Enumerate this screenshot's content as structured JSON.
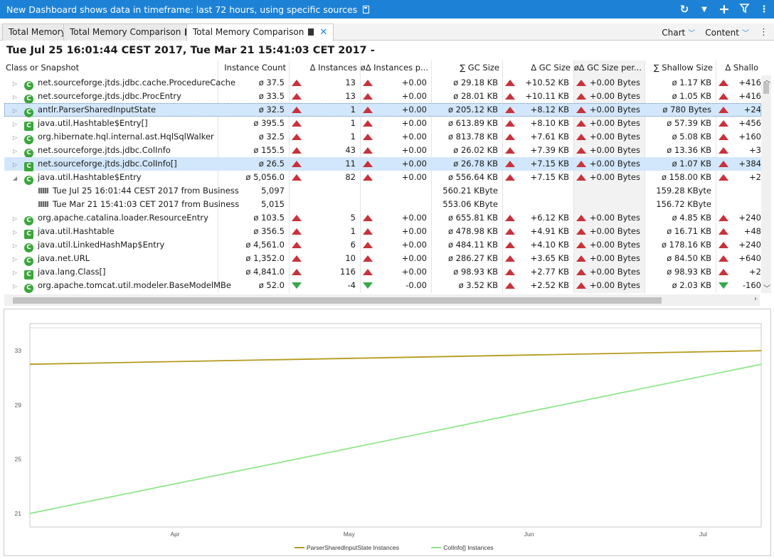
{
  "titlebar": {
    "title": "New Dashboard shows data in timeframe: last 72 hours, using specific sources",
    "icons": [
      "refresh-icon",
      "dropdown-icon",
      "plus-icon",
      "filter-icon",
      "more-icon"
    ]
  },
  "tabs": [
    {
      "label": "Total Memory"
    },
    {
      "label": "Total Memory Comparison"
    },
    {
      "label": "Total Memory Comparison"
    }
  ],
  "toolbar": {
    "chart_label": "Chart",
    "content_label": "Content"
  },
  "heading": "Tue Jul 25 16:01:44 CEST 2017, Tue Mar 21 15:41:03 CET 2017 -",
  "columns": [
    "Class or Snapshot",
    "Instance Count",
    "Δ Instances",
    "ø∆ Instances p...",
    "∑ GC Size",
    "Δ GC Size",
    "ø∆ GC Size per...",
    "∑ Shallow Size",
    "Δ Shallo"
  ],
  "rows": [
    {
      "name": "net.sourceforge.jtds.jdbc.cache.ProcedureCache",
      "type": "class",
      "count": "ø 37.5",
      "dinst": "13",
      "dinst_up": true,
      "avginst": "+0.00",
      "gc": "ø 29.18 KB",
      "dgc": "+10.52 KB",
      "avggc": "+0.00 Bytes",
      "shallow": "ø 1.17 KB",
      "dshallow": "+416"
    },
    {
      "name": "net.sourceforge.jtds.jdbc.ProcEntry",
      "type": "class",
      "count": "ø 33.5",
      "dinst": "13",
      "dinst_up": true,
      "avginst": "+0.00",
      "gc": "ø 28.01 KB",
      "dgc": "+10.11 KB",
      "avggc": "+0.00 Bytes",
      "shallow": "ø 1.05 KB",
      "dshallow": "+416"
    },
    {
      "name": "antlr.ParserSharedInputState",
      "type": "class",
      "count": "ø 32.5",
      "dinst": "1",
      "dinst_up": true,
      "avginst": "+0.00",
      "gc": "ø 205.12 KB",
      "dgc": "+8.12 KB",
      "avggc": "+0.00 Bytes",
      "shallow": "ø 780 Bytes",
      "dshallow": "+24",
      "selected": true,
      "focused": true
    },
    {
      "name": "java.util.Hashtable$Entry[]",
      "type": "array",
      "count": "ø 395.5",
      "dinst": "1",
      "dinst_up": true,
      "avginst": "+0.00",
      "gc": "ø 613.89 KB",
      "dgc": "+8.10 KB",
      "avggc": "+0.00 Bytes",
      "shallow": "ø 57.39 KB",
      "dshallow": "+456"
    },
    {
      "name": "org.hibernate.hql.internal.ast.HqlSqlWalker",
      "type": "class",
      "count": "ø 32.5",
      "dinst": "1",
      "dinst_up": true,
      "avginst": "+0.00",
      "gc": "ø 813.78 KB",
      "dgc": "+7.61 KB",
      "avggc": "+0.00 Bytes",
      "shallow": "ø 5.08 KB",
      "dshallow": "+160"
    },
    {
      "name": "net.sourceforge.jtds.jdbc.ColInfo",
      "type": "class",
      "count": "ø 155.5",
      "dinst": "43",
      "dinst_up": true,
      "avginst": "+0.00",
      "gc": "ø 26.02 KB",
      "dgc": "+7.39 KB",
      "avggc": "+0.00 Bytes",
      "shallow": "ø 13.36 KB",
      "dshallow": "+3"
    },
    {
      "name": "net.sourceforge.jtds.jdbc.ColInfo[]",
      "type": "array",
      "count": "ø 26.5",
      "dinst": "11",
      "dinst_up": true,
      "avginst": "+0.00",
      "gc": "ø 26.78 KB",
      "dgc": "+7.15 KB",
      "avggc": "+0.00 Bytes",
      "shallow": "ø 1.07 KB",
      "dshallow": "+384",
      "selected": true
    },
    {
      "name": "java.util.Hashtable$Entry",
      "type": "class",
      "count": "ø 5,056.0",
      "dinst": "82",
      "dinst_up": true,
      "avginst": "+0.00",
      "gc": "ø 556.64 KB",
      "dgc": "+7.15 KB",
      "avggc": "+0.00 Bytes",
      "shallow": "ø 158.00 KB",
      "dshallow": "+2",
      "expanded": true
    },
    {
      "name": "Tue Jul 25 16:01:44 CEST 2017 from Business",
      "type": "snapshot",
      "count": "5,097",
      "gc": "560.21 KByte",
      "shallow": "159.28 KByte"
    },
    {
      "name": "Tue Mar 21 15:41:03 CET 2017 from Business",
      "type": "snapshot",
      "count": "5,015",
      "gc": "553.06 KByte",
      "shallow": "156.72 KByte"
    },
    {
      "name": "org.apache.catalina.loader.ResourceEntry",
      "type": "class",
      "count": "ø 103.5",
      "dinst": "5",
      "dinst_up": true,
      "avginst": "+0.00",
      "gc": "ø 655.81 KB",
      "dgc": "+6.12 KB",
      "avggc": "+0.00 Bytes",
      "shallow": "ø 4.85 KB",
      "dshallow": "+240"
    },
    {
      "name": "java.util.Hashtable",
      "type": "array",
      "count": "ø 356.5",
      "dinst": "1",
      "dinst_up": true,
      "avginst": "+0.00",
      "gc": "ø 478.98 KB",
      "dgc": "+4.91 KB",
      "avggc": "+0.00 Bytes",
      "shallow": "ø 16.71 KB",
      "dshallow": "+48"
    },
    {
      "name": "java.util.LinkedHashMap$Entry",
      "type": "class",
      "count": "ø 4,561.0",
      "dinst": "6",
      "dinst_up": true,
      "avginst": "+0.00",
      "gc": "ø 484.11 KB",
      "dgc": "+4.10 KB",
      "avggc": "+0.00 Bytes",
      "shallow": "ø 178.16 KB",
      "dshallow": "+240"
    },
    {
      "name": "java.net.URL",
      "type": "class",
      "count": "ø 1,352.0",
      "dinst": "10",
      "dinst_up": true,
      "avginst": "+0.00",
      "gc": "ø 286.27 KB",
      "dgc": "+3.65 KB",
      "avggc": "+0.00 Bytes",
      "shallow": "ø 84.50 KB",
      "dshallow": "+640"
    },
    {
      "name": "java.lang.Class[]",
      "type": "array",
      "count": "ø 4,841.0",
      "dinst": "116",
      "dinst_up": true,
      "avginst": "+0.00",
      "gc": "ø 98.93 KB",
      "dgc": "+2.77 KB",
      "avggc": "+0.00 Bytes",
      "shallow": "ø 98.93 KB",
      "dshallow": "+2"
    },
    {
      "name": "org.apache.tomcat.util.modeler.BaseModelMBe",
      "type": "class",
      "count": "ø 52.0",
      "dinst": "-4",
      "dinst_up": false,
      "avginst": "-0.00",
      "gc": "ø 3.52 KB",
      "dgc": "+2.52 KB",
      "avggc": "+0.00 Bytes",
      "shallow": "ø 2.03 KB",
      "dshallow": "-160",
      "dshallow_down": true
    }
  ],
  "chart_data": {
    "type": "line",
    "xlabel": "",
    "ylabel": "",
    "x_ticks": [
      "Apr",
      "May",
      "Jun",
      "Jul"
    ],
    "y_ticks": [
      21,
      25,
      29,
      33
    ],
    "ylim": [
      20,
      35
    ],
    "x": [
      "2017-03-21",
      "2017-07-25"
    ],
    "series": [
      {
        "name": "ParserSharedInputState Instances",
        "color": "#b59a1c",
        "values": [
          32.0,
          33.0
        ]
      },
      {
        "name": "ColInfo[] Instances",
        "color": "#8ee88a",
        "values": [
          21.0,
          32.0
        ]
      }
    ],
    "legend": "bottom",
    "grid": false
  }
}
